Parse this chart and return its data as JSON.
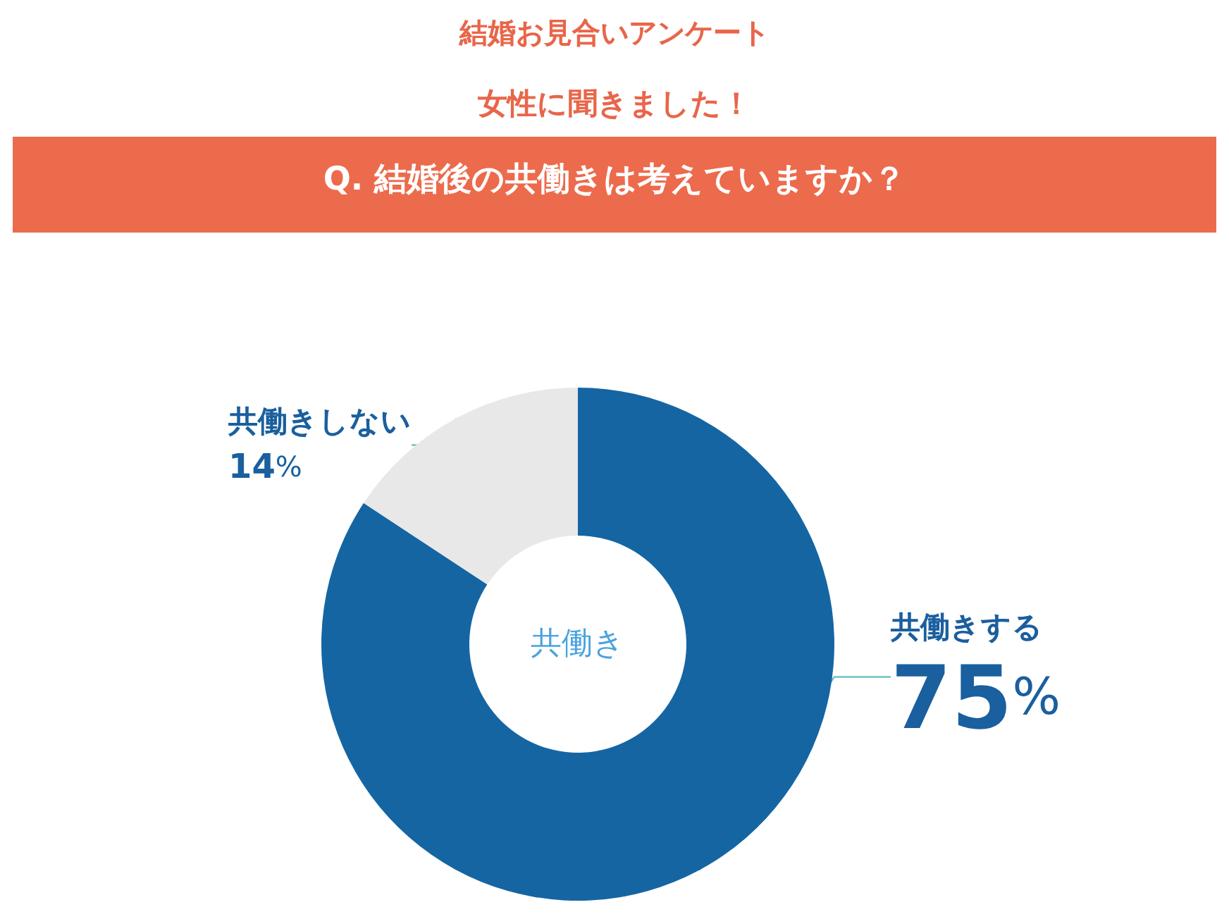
{
  "chart_data": {
    "type": "donut",
    "title": "結婚お見合いアンケート",
    "subtitle": "女性に聞きました！",
    "annotations": [
      "Q. 結婚後の共働きは考えていますか？",
      "共働き"
    ],
    "categories": [
      "共働きする",
      "共働きしない"
    ],
    "values": [
      75,
      14
    ],
    "colors": [
      "#1565a3",
      "#e8e8e8"
    ],
    "value_labels": [
      "75%",
      "14%"
    ],
    "legend": false
  }
}
